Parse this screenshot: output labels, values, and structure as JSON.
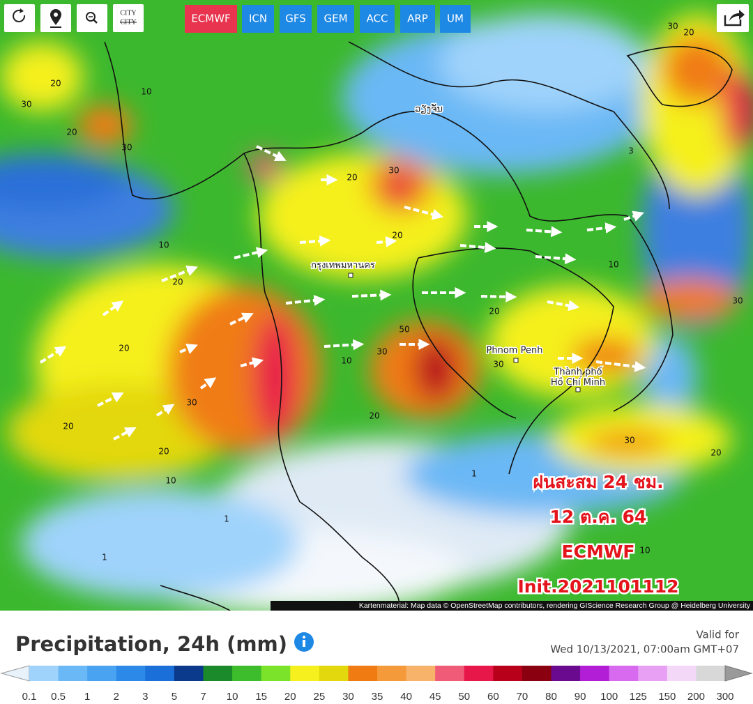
{
  "toolbar": {
    "city_button": [
      "CITY",
      "CITY"
    ]
  },
  "model_tabs": [
    "ECMWF",
    "ICN",
    "GFS",
    "GEM",
    "ACC",
    "ARP",
    "UM"
  ],
  "active_tab": 0,
  "map": {
    "places": [
      "ວຽງຈັນ",
      "กรุงเทพมหานคร",
      "Phnom Penh",
      "Thành phố",
      "Hồ Chí Minh"
    ],
    "contour_labels": [
      "20",
      "30",
      "20",
      "30",
      "10",
      "10",
      "20",
      "20",
      "30",
      "20",
      "20",
      "10",
      "1",
      "1",
      "20",
      "30",
      "20",
      "10",
      "30",
      "20",
      "50",
      "30",
      "20",
      "10",
      "30",
      "20",
      "30",
      "3",
      "30",
      "20",
      "10",
      "1"
    ],
    "overlay": [
      "ฝนสะสม 24 ชม.",
      "12 ต.ค. 64",
      "ECMWF",
      "Init.2021101112"
    ],
    "attribution": "Kartenmaterial: Map data © OpenStreetMap contributors, rendering GIScience Research Group @ Heidelberg University"
  },
  "legend": {
    "title": "Precipitation, 24h (mm)",
    "valid_for_label": "Valid for",
    "valid_time": "Wed 10/13/2021, 07:00am GMT+07",
    "stops": [
      "0.1",
      "0.5",
      "1",
      "2",
      "3",
      "5",
      "7",
      "10",
      "15",
      "20",
      "25",
      "30",
      "35",
      "40",
      "45",
      "50",
      "60",
      "70",
      "80",
      "90",
      "100",
      "125",
      "150",
      "200",
      "300"
    ],
    "colors": [
      "#9fd3fb",
      "#6ab8f5",
      "#4aa3f0",
      "#2c89e8",
      "#1a6fd8",
      "#0b3a8c",
      "#1a8a2a",
      "#3dbd2b",
      "#7be32a",
      "#f5f01e",
      "#e3d80e",
      "#f07b12",
      "#f59a3a",
      "#f7b36a",
      "#f05b78",
      "#e8174a",
      "#b8001a",
      "#8a0010",
      "#6a0a8e",
      "#b21ed6",
      "#d86af0",
      "#e8a0f5",
      "#f3d8f8",
      "#d8d8d8"
    ]
  }
}
